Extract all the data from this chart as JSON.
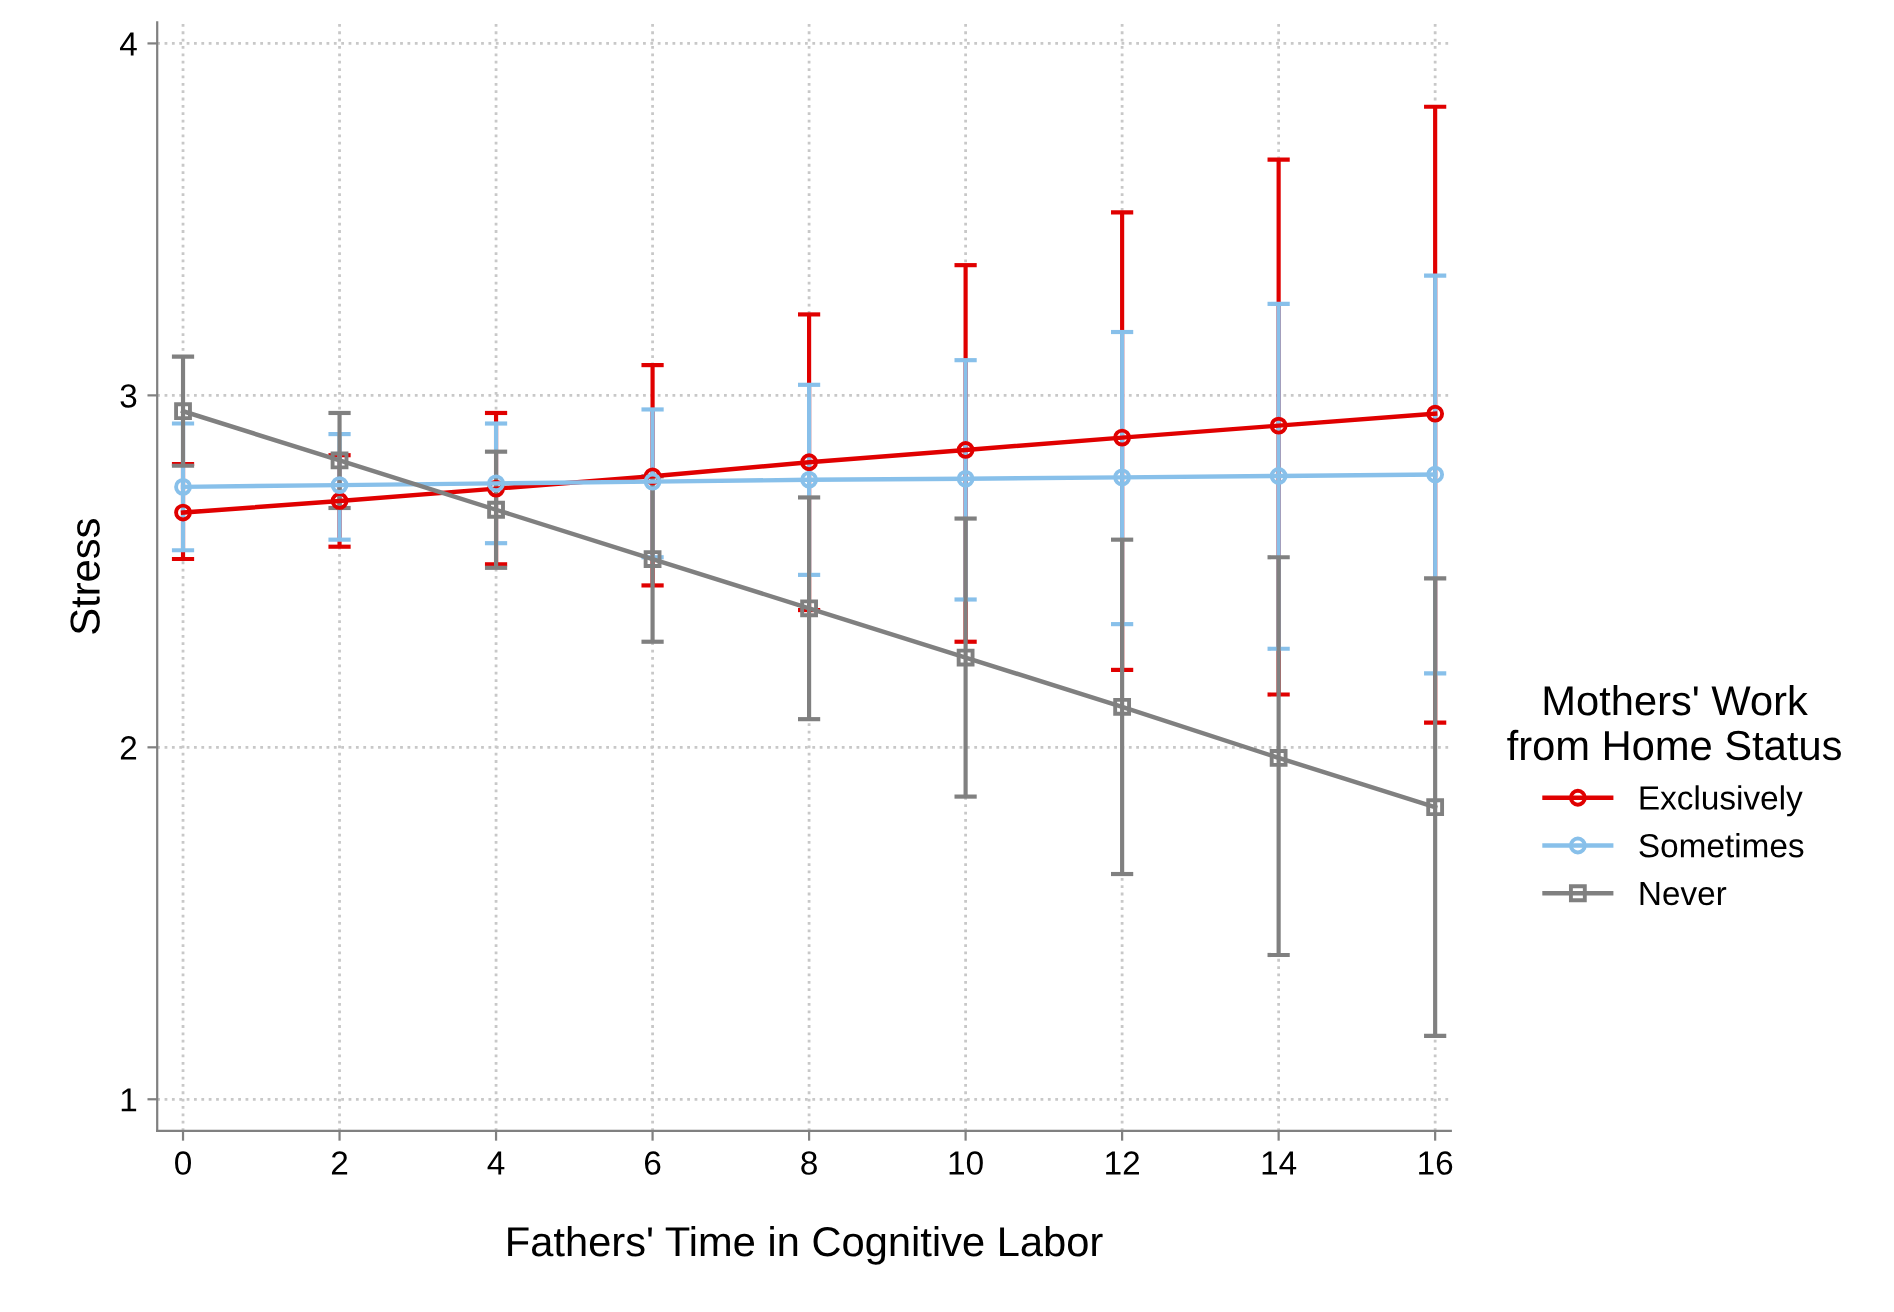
{
  "chart_data": {
    "type": "line",
    "xlabel": "Fathers' Time in Cognitive Labor",
    "ylabel": "Stress",
    "legend_title": "Mothers' Work\nfrom Home Status",
    "x": [
      0,
      2,
      4,
      6,
      8,
      10,
      12,
      14,
      16
    ],
    "series": [
      {
        "name": "Exclusively",
        "color": "#e00000",
        "marker": "circle",
        "values": [
          2.667,
          2.7,
          2.735,
          2.77,
          2.81,
          2.845,
          2.88,
          2.914,
          2.948
        ],
        "errors": [
          [
            2.535,
            2.805
          ],
          [
            2.57,
            2.83
          ],
          [
            2.52,
            2.95
          ],
          [
            2.46,
            3.086
          ],
          [
            2.39,
            3.23
          ],
          [
            2.3,
            3.37
          ],
          [
            2.22,
            3.52
          ],
          [
            2.15,
            3.67
          ],
          [
            2.07,
            3.82
          ]
        ]
      },
      {
        "name": "Sometimes",
        "color": "#88c0ea",
        "marker": "circle",
        "values": [
          2.74,
          2.745,
          2.75,
          2.755,
          2.76,
          2.763,
          2.767,
          2.771,
          2.775
        ],
        "errors": [
          [
            2.56,
            2.92
          ],
          [
            2.59,
            2.89
          ],
          [
            2.58,
            2.92
          ],
          [
            2.54,
            2.96
          ],
          [
            2.49,
            3.03
          ],
          [
            2.42,
            3.1
          ],
          [
            2.35,
            3.18
          ],
          [
            2.28,
            3.26
          ],
          [
            2.21,
            3.34
          ]
        ]
      },
      {
        "name": "Never",
        "color": "#808080",
        "marker": "square",
        "values": [
          2.955,
          2.815,
          2.675,
          2.535,
          2.395,
          2.255,
          2.115,
          1.97,
          1.83
        ],
        "errors": [
          [
            2.8,
            3.11
          ],
          [
            2.68,
            2.95
          ],
          [
            2.51,
            2.84
          ],
          [
            2.3,
            2.77
          ],
          [
            2.08,
            2.71
          ],
          [
            1.86,
            2.65
          ],
          [
            1.64,
            2.59
          ],
          [
            1.41,
            2.54
          ],
          [
            1.18,
            2.48
          ]
        ]
      }
    ],
    "xlim": [
      -0.33,
      16.2
    ],
    "xticks": [
      0,
      2,
      4,
      6,
      8,
      10,
      12,
      14,
      16
    ],
    "ylim": [
      0.91,
      4.06
    ],
    "yticks": [
      1,
      2,
      3,
      4
    ],
    "grid": true,
    "legend": "right",
    "line_style": "solid"
  }
}
